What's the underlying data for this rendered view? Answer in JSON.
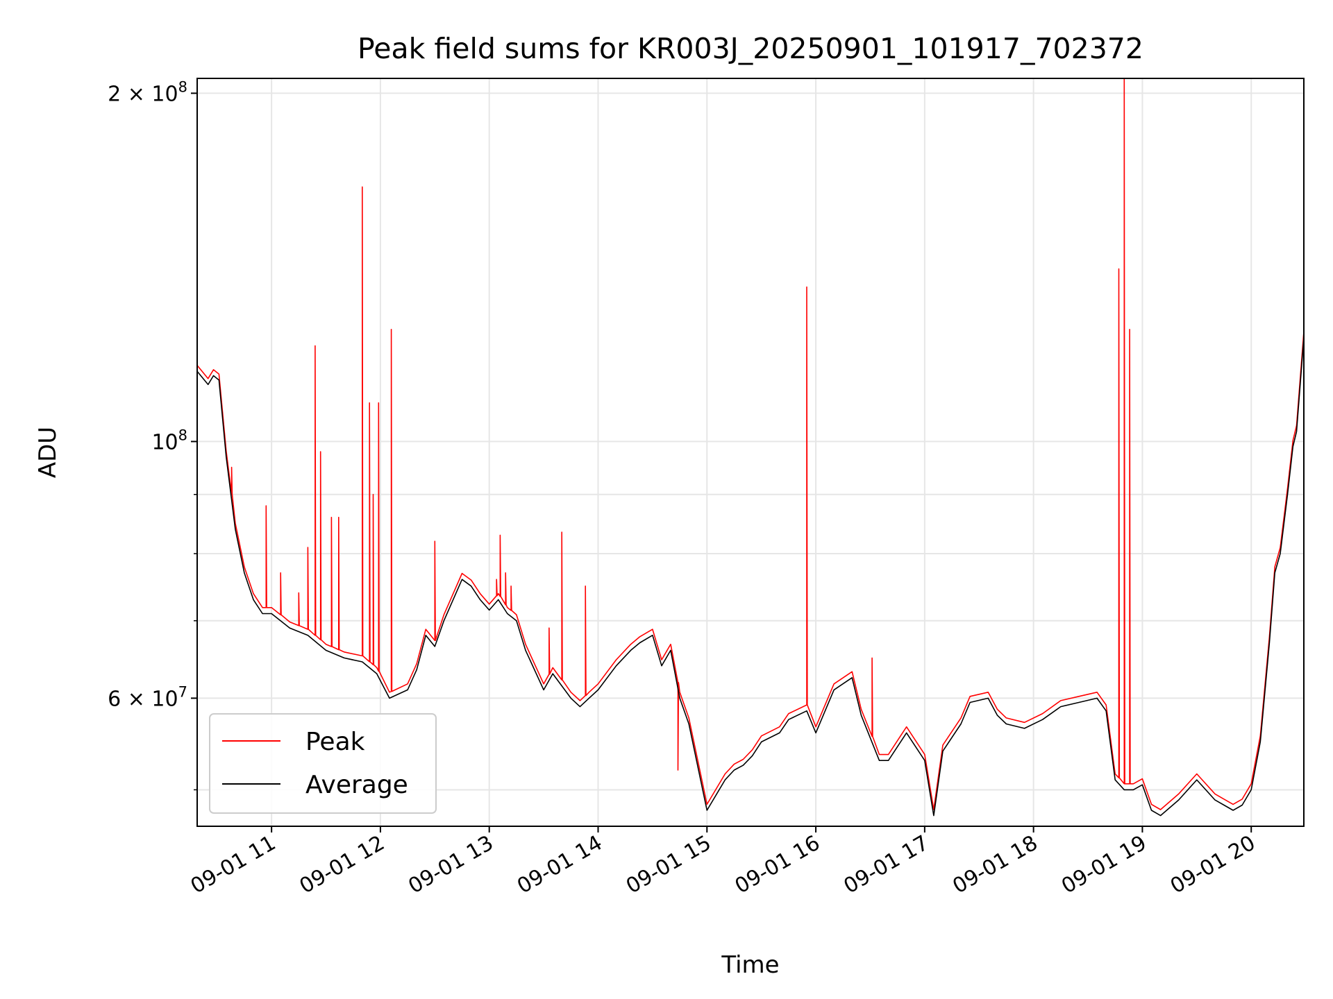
{
  "chart_data": {
    "type": "line",
    "title": "Peak field sums for KR003J_20250901_101917_702372",
    "xlabel": "Time",
    "ylabel": "ADU",
    "y_scale": "log",
    "x_range": [
      "2025-09-01 10:19",
      "2025-09-01 20:29"
    ],
    "ylim": [
      46500000,
      206000000
    ],
    "grid": true,
    "legend_position": "lower-left",
    "x_tick_labels": [
      "09-01 11",
      "09-01 12",
      "09-01 13",
      "09-01 14",
      "09-01 15",
      "09-01 16",
      "09-01 17",
      "09-01 18",
      "09-01 19",
      "09-01 20"
    ],
    "x_ticks": [
      "2025-09-01 11:00",
      "2025-09-01 12:00",
      "2025-09-01 13:00",
      "2025-09-01 14:00",
      "2025-09-01 15:00",
      "2025-09-01 16:00",
      "2025-09-01 17:00",
      "2025-09-01 18:00",
      "2025-09-01 19:00",
      "2025-09-01 20:00"
    ],
    "y_major_ticks": [
      {
        "value": 200000000,
        "base": "2 × 10",
        "exp": "8"
      },
      {
        "value": 100000000,
        "base": "10",
        "exp": "8"
      },
      {
        "value": 60000000,
        "base": "6 × 10",
        "exp": "7"
      }
    ],
    "y_minor_ticks": [
      50000000,
      70000000,
      80000000,
      90000000
    ],
    "series": [
      {
        "name": "Average",
        "color": "#000000",
        "x": [
          "2025-09-01 10:19",
          "2025-09-01 10:25",
          "2025-09-01 10:28",
          "2025-09-01 10:31",
          "2025-09-01 10:35",
          "2025-09-01 10:40",
          "2025-09-01 10:45",
          "2025-09-01 10:50",
          "2025-09-01 10:55",
          "2025-09-01 11:00",
          "2025-09-01 11:10",
          "2025-09-01 11:20",
          "2025-09-01 11:30",
          "2025-09-01 11:40",
          "2025-09-01 11:50",
          "2025-09-01 11:58",
          "2025-09-01 12:05",
          "2025-09-01 12:15",
          "2025-09-01 12:20",
          "2025-09-01 12:25",
          "2025-09-01 12:30",
          "2025-09-01 12:35",
          "2025-09-01 12:45",
          "2025-09-01 12:50",
          "2025-09-01 12:55",
          "2025-09-01 13:00",
          "2025-09-01 13:05",
          "2025-09-01 13:10",
          "2025-09-01 13:15",
          "2025-09-01 13:20",
          "2025-09-01 13:30",
          "2025-09-01 13:35",
          "2025-09-01 13:45",
          "2025-09-01 13:50",
          "2025-09-01 13:55",
          "2025-09-01 14:00",
          "2025-09-01 14:10",
          "2025-09-01 14:18",
          "2025-09-01 14:23",
          "2025-09-01 14:30",
          "2025-09-01 14:35",
          "2025-09-01 14:40",
          "2025-09-01 14:45",
          "2025-09-01 14:50",
          "2025-09-01 15:00",
          "2025-09-01 15:10",
          "2025-09-01 15:15",
          "2025-09-01 15:20",
          "2025-09-01 15:25",
          "2025-09-01 15:30",
          "2025-09-01 15:40",
          "2025-09-01 15:45",
          "2025-09-01 15:55",
          "2025-09-01 16:00",
          "2025-09-01 16:10",
          "2025-09-01 16:20",
          "2025-09-01 16:25",
          "2025-09-01 16:35",
          "2025-09-01 16:40",
          "2025-09-01 16:50",
          "2025-09-01 17:00",
          "2025-09-01 17:05",
          "2025-09-01 17:10",
          "2025-09-01 17:20",
          "2025-09-01 17:25",
          "2025-09-01 17:35",
          "2025-09-01 17:40",
          "2025-09-01 17:45",
          "2025-09-01 17:55",
          "2025-09-01 18:05",
          "2025-09-01 18:15",
          "2025-09-01 18:25",
          "2025-09-01 18:35",
          "2025-09-01 18:40",
          "2025-09-01 18:45",
          "2025-09-01 18:50",
          "2025-09-01 18:55",
          "2025-09-01 19:00",
          "2025-09-01 19:05",
          "2025-09-01 19:10",
          "2025-09-01 19:20",
          "2025-09-01 19:30",
          "2025-09-01 19:40",
          "2025-09-01 19:45",
          "2025-09-01 19:50",
          "2025-09-01 19:55",
          "2025-09-01 20:00",
          "2025-09-01 20:05",
          "2025-09-01 20:10",
          "2025-09-01 20:13",
          "2025-09-01 20:16",
          "2025-09-01 20:20",
          "2025-09-01 20:23",
          "2025-09-01 20:25",
          "2025-09-01 20:29"
        ],
        "y": [
          115000000,
          112000000,
          114000000,
          113000000,
          97000000,
          84000000,
          77000000,
          73000000,
          71000000,
          71000000,
          69000000,
          68000000,
          66000000,
          65000000,
          64500000,
          63000000,
          60000000,
          61000000,
          63500000,
          68000000,
          66500000,
          70000000,
          76000000,
          75000000,
          73000000,
          71500000,
          73000000,
          71000000,
          70000000,
          66000000,
          61000000,
          63000000,
          60000000,
          59000000,
          60000000,
          61000000,
          64000000,
          66000000,
          67000000,
          68000000,
          64000000,
          66000000,
          60000000,
          57000000,
          48000000,
          51000000,
          52000000,
          52500000,
          53500000,
          55000000,
          56000000,
          57500000,
          58500000,
          56000000,
          61000000,
          62500000,
          58000000,
          53000000,
          53000000,
          56000000,
          53000000,
          47500000,
          54000000,
          57000000,
          59500000,
          60000000,
          58000000,
          57000000,
          56500000,
          57500000,
          59000000,
          59500000,
          60000000,
          58500000,
          51000000,
          50000000,
          50000000,
          50500000,
          48000000,
          47500000,
          49000000,
          51000000,
          49000000,
          48500000,
          48000000,
          48500000,
          50000000,
          55000000,
          67000000,
          77000000,
          80000000,
          90000000,
          99000000,
          102000000,
          123000000
        ]
      },
      {
        "name": "Peak",
        "color": "#ff0000",
        "spikes": [
          {
            "x": "2025-09-01 10:38",
            "y": 95000000
          },
          {
            "x": "2025-09-01 10:57",
            "y": 88000000
          },
          {
            "x": "2025-09-01 11:05",
            "y": 77000000
          },
          {
            "x": "2025-09-01 11:15",
            "y": 74000000
          },
          {
            "x": "2025-09-01 11:20",
            "y": 81000000
          },
          {
            "x": "2025-09-01 11:24",
            "y": 121000000
          },
          {
            "x": "2025-09-01 11:27",
            "y": 98000000
          },
          {
            "x": "2025-09-01 11:33",
            "y": 86000000
          },
          {
            "x": "2025-09-01 11:37",
            "y": 86000000
          },
          {
            "x": "2025-09-01 11:50",
            "y": 166000000
          },
          {
            "x": "2025-09-01 11:54",
            "y": 108000000
          },
          {
            "x": "2025-09-01 11:56",
            "y": 90000000
          },
          {
            "x": "2025-09-01 11:59",
            "y": 108000000
          },
          {
            "x": "2025-09-01 12:06",
            "y": 125000000
          },
          {
            "x": "2025-09-01 12:30",
            "y": 82000000
          },
          {
            "x": "2025-09-01 13:04",
            "y": 76000000
          },
          {
            "x": "2025-09-01 13:06",
            "y": 83000000
          },
          {
            "x": "2025-09-01 13:09",
            "y": 77000000
          },
          {
            "x": "2025-09-01 13:12",
            "y": 75000000
          },
          {
            "x": "2025-09-01 13:33",
            "y": 69000000
          },
          {
            "x": "2025-09-01 13:40",
            "y": 83500000
          },
          {
            "x": "2025-09-01 13:53",
            "y": 75000000
          },
          {
            "x": "2025-09-01 14:44",
            "y": 52000000
          },
          {
            "x": "2025-09-01 15:55",
            "y": 136000000
          },
          {
            "x": "2025-09-01 16:31",
            "y": 65000000
          },
          {
            "x": "2025-09-01 18:47",
            "y": 141000000
          },
          {
            "x": "2025-09-01 18:50",
            "y": 210000000
          },
          {
            "x": "2025-09-01 18:53",
            "y": 125000000
          }
        ]
      }
    ]
  }
}
